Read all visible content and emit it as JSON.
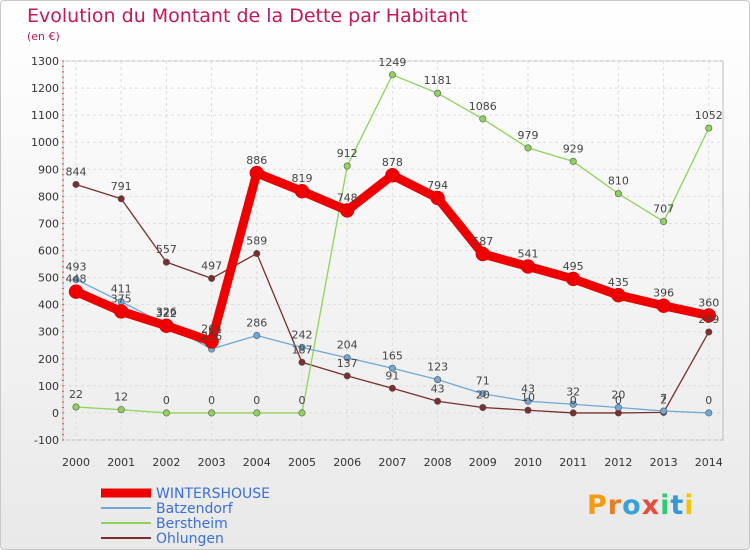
{
  "title": "Evolution du Montant de la Dette par Habitant",
  "subtitle": "(en €)",
  "logo": "Proxiti",
  "chart_data": {
    "type": "line",
    "x": [
      2000,
      2001,
      2002,
      2003,
      2004,
      2005,
      2006,
      2007,
      2008,
      2009,
      2010,
      2011,
      2012,
      2013,
      2014
    ],
    "ylim": [
      -100,
      1300
    ],
    "yticks": [
      -100,
      0,
      100,
      200,
      300,
      400,
      500,
      600,
      700,
      800,
      900,
      1000,
      1100,
      1200,
      1300
    ],
    "grid": true,
    "legend": "bottom-left",
    "series": [
      {
        "name": "WINTERSHOUSE",
        "color": "#ee0000",
        "values": [
          448,
          375,
          322,
          264,
          886,
          819,
          748,
          878,
          794,
          587,
          541,
          495,
          435,
          396,
          360
        ]
      },
      {
        "name": "Batzendorf",
        "color": "#6fa8d6",
        "values": [
          493,
          411,
          326,
          236,
          286,
          242,
          204,
          165,
          123,
          71,
          43,
          32,
          20,
          7,
          0
        ]
      },
      {
        "name": "Berstheim",
        "color": "#8fd35a",
        "values": [
          22,
          12,
          0,
          0,
          0,
          0,
          912,
          1249,
          1181,
          1086,
          979,
          929,
          810,
          707,
          1052
        ]
      },
      {
        "name": "Ohlungen",
        "color": "#7a2e2e",
        "values": [
          844,
          791,
          557,
          497,
          589,
          187,
          137,
          91,
          43,
          20,
          10,
          0,
          0,
          2,
          299
        ]
      }
    ]
  },
  "logo_colors": [
    "#f39c12",
    "#e67e22",
    "#3aa0d8",
    "#e74c3c",
    "#2ecc71",
    "#3498db",
    "#f1c40f"
  ]
}
